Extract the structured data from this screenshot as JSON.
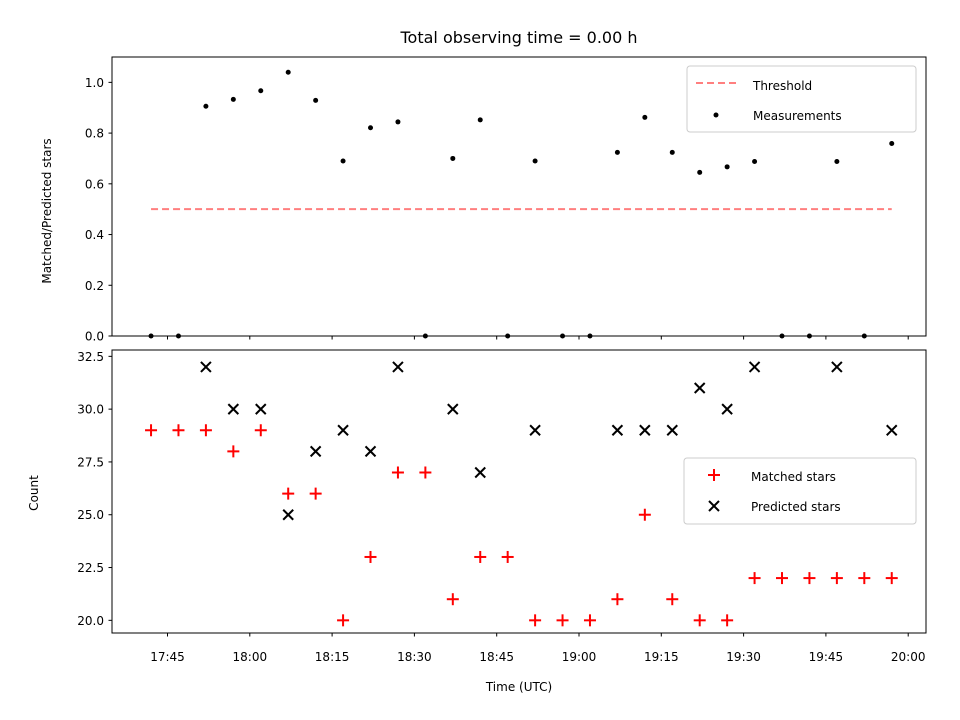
{
  "chart_data": [
    {
      "type": "scatter",
      "title": "Total observing time = 0.00 h",
      "xlabel": "",
      "ylabel": "Matched/Predicted stars",
      "ylim": [
        0,
        1.1
      ],
      "yticks": [
        "0.0",
        "0.2",
        "0.4",
        "0.6",
        "0.8",
        "1.0"
      ],
      "legend_position": "top-right",
      "grid": false,
      "threshold": {
        "name": "Threshold",
        "value": 0.5,
        "x_start": "17:42",
        "x_end": "19:57",
        "color": "#ff7f7f"
      },
      "series": [
        {
          "name": "Measurements",
          "color": "#000000",
          "x": [
            "17:42",
            "17:47",
            "17:52",
            "17:57",
            "18:02",
            "18:07",
            "18:12",
            "18:17",
            "18:22",
            "18:27",
            "18:32",
            "18:37",
            "18:42",
            "18:47",
            "18:52",
            "18:57",
            "19:02",
            "19:07",
            "19:12",
            "19:17",
            "19:22",
            "19:27",
            "19:32",
            "19:37",
            "19:42",
            "19:47",
            "19:52",
            "19:57"
          ],
          "values": [
            0,
            0,
            0.906,
            0.933,
            0.967,
            1.04,
            0.929,
            0.69,
            0.821,
            0.844,
            0,
            0.7,
            0.852,
            0,
            0.69,
            0,
            0,
            0.724,
            0.862,
            0.724,
            0.645,
            0.667,
            0.688,
            0,
            0,
            0.688,
            0,
            0.759
          ]
        }
      ]
    },
    {
      "type": "scatter",
      "title": "",
      "xlabel": "Time (UTC)",
      "ylabel": "Count",
      "ylim": [
        19.4,
        32.8
      ],
      "yticks": [
        "20.0",
        "22.5",
        "25.0",
        "27.5",
        "30.0",
        "32.5"
      ],
      "xticks": [
        "17:45",
        "18:00",
        "18:15",
        "18:30",
        "18:45",
        "19:00",
        "19:15",
        "19:30",
        "19:45",
        "20:00"
      ],
      "legend_position": "center-right",
      "grid": false,
      "series": [
        {
          "name": "Matched stars",
          "marker": "+",
          "color": "#ff0000",
          "x": [
            "17:42",
            "17:47",
            "17:52",
            "17:57",
            "18:02",
            "18:07",
            "18:12",
            "18:17",
            "18:22",
            "18:27",
            "18:32",
            "18:37",
            "18:42",
            "18:47",
            "18:52",
            "18:57",
            "19:02",
            "19:07",
            "19:12",
            "19:17",
            "19:22",
            "19:27",
            "19:32",
            "19:37",
            "19:42",
            "19:47",
            "19:52",
            "19:57"
          ],
          "values": [
            29,
            29,
            29,
            28,
            29,
            26,
            26,
            20,
            23,
            27,
            27,
            21,
            23,
            23,
            20,
            20,
            20,
            21,
            25,
            21,
            20,
            20,
            22,
            22,
            22,
            22,
            22,
            22
          ]
        },
        {
          "name": "Predicted stars",
          "marker": "x",
          "color": "#000000",
          "x": [
            "17:52",
            "17:57",
            "18:02",
            "18:07",
            "18:12",
            "18:17",
            "18:22",
            "18:27",
            "18:37",
            "18:42",
            "18:52",
            "19:07",
            "19:12",
            "19:17",
            "19:22",
            "19:27",
            "19:32",
            "19:47",
            "19:57"
          ],
          "values": [
            32,
            30,
            30,
            25,
            28,
            29,
            28,
            32,
            30,
            27,
            29,
            29,
            29,
            29,
            31,
            30,
            32,
            32,
            29
          ]
        }
      ]
    }
  ]
}
